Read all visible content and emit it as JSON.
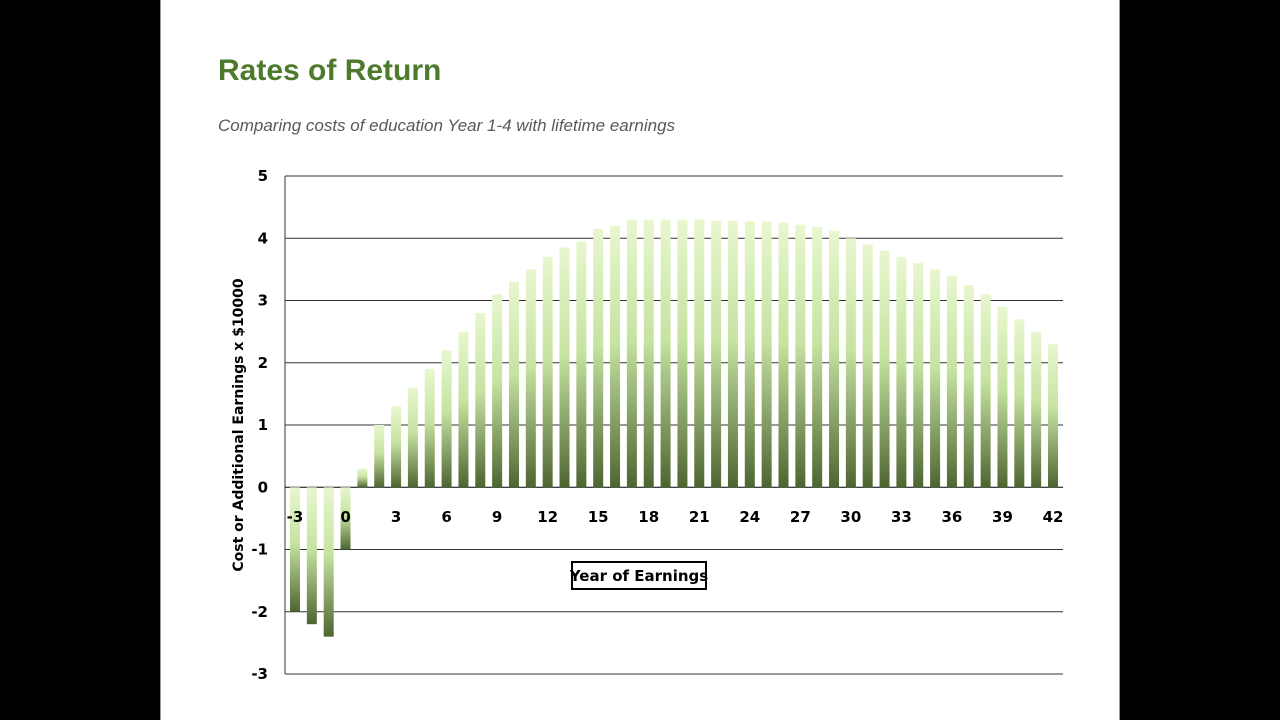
{
  "slide": {
    "title": "Rates of Return",
    "subtitle": "Comparing costs of education Year 1-4 with lifetime earnings"
  },
  "colors": {
    "background": "#000000",
    "slide": "#ffffff",
    "title": "#4e7a2c",
    "subtitle": "#595959",
    "bar_light": "#e8f7cf",
    "bar_mid": "#c6e3a1",
    "bar_dark": "#4d6631"
  },
  "chart_data": {
    "type": "bar",
    "title": "",
    "xlabel": "Year of Earnings",
    "ylabel": "Cost or Additional Earnings x $10000",
    "ylim": [
      -3,
      5
    ],
    "yticks": [
      -3,
      -2,
      -1,
      0,
      1,
      2,
      3,
      4,
      5
    ],
    "xtick_labels": [
      "-3",
      "0",
      "3",
      "6",
      "9",
      "12",
      "15",
      "18",
      "21",
      "24",
      "27",
      "30",
      "33",
      "36",
      "39",
      "42"
    ],
    "grid": true,
    "x": [
      -3,
      -2,
      -1,
      0,
      1,
      2,
      3,
      4,
      5,
      6,
      7,
      8,
      9,
      10,
      11,
      12,
      13,
      14,
      15,
      16,
      17,
      18,
      19,
      20,
      21,
      22,
      23,
      24,
      25,
      26,
      27,
      28,
      29,
      30,
      31,
      32,
      33,
      34,
      35,
      36,
      37,
      38,
      39,
      40,
      41,
      42
    ],
    "values": [
      -2.0,
      -2.2,
      -2.4,
      -1.0,
      0.3,
      1.0,
      1.3,
      1.6,
      1.9,
      2.2,
      2.5,
      2.8,
      3.1,
      3.3,
      3.5,
      3.7,
      3.85,
      3.95,
      4.15,
      4.2,
      4.3,
      4.3,
      4.3,
      4.3,
      4.3,
      4.28,
      4.28,
      4.27,
      4.27,
      4.25,
      4.22,
      4.18,
      4.12,
      4.0,
      3.9,
      3.8,
      3.7,
      3.6,
      3.5,
      3.4,
      3.25,
      3.1,
      2.9,
      2.7,
      2.5,
      2.3
    ]
  }
}
